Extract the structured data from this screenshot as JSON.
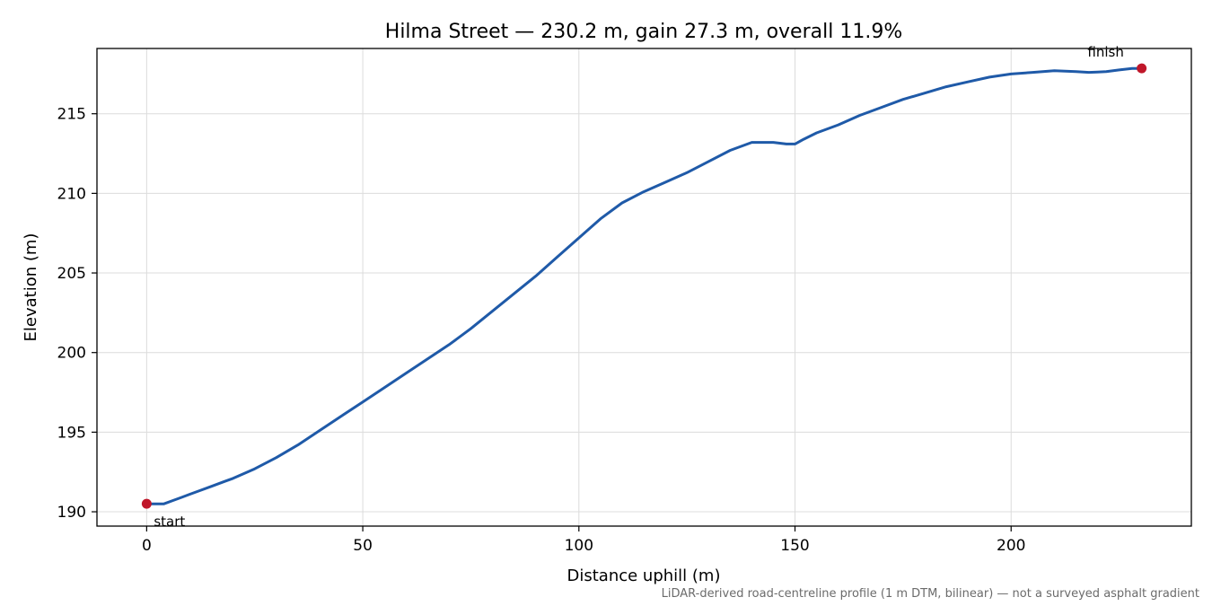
{
  "chart_data": {
    "type": "line",
    "title": "Hilma Street — 230.2 m, gain 27.3 m, overall 11.9%",
    "xlabel": "Distance uphill (m)",
    "ylabel": "Elevation (m)",
    "xlim": [
      -11.5,
      241.7
    ],
    "ylim": [
      189.1,
      219.1
    ],
    "xticks": [
      0,
      50,
      100,
      150,
      200
    ],
    "yticks": [
      190,
      195,
      200,
      205,
      210,
      215
    ],
    "grid": true,
    "series": [
      {
        "color": "#1f5aa8",
        "x": [
          0,
          2,
          4,
          6,
          8,
          10,
          12,
          15,
          18,
          20,
          25,
          30,
          35,
          40,
          45,
          50,
          55,
          60,
          65,
          70,
          75,
          80,
          85,
          90,
          95,
          100,
          105,
          110,
          115,
          120,
          125,
          130,
          135,
          140,
          145,
          148,
          150,
          152,
          155,
          160,
          165,
          170,
          175,
          180,
          185,
          190,
          195,
          200,
          205,
          210,
          215,
          218,
          220,
          222,
          225,
          228,
          230.2
        ],
        "y": [
          190.5,
          190.5,
          190.5,
          190.7,
          190.9,
          191.1,
          191.3,
          191.6,
          191.9,
          192.1,
          192.7,
          193.4,
          194.2,
          195.1,
          196.0,
          196.9,
          197.8,
          198.7,
          199.6,
          200.5,
          201.5,
          202.6,
          203.7,
          204.8,
          206.0,
          207.2,
          208.4,
          209.4,
          210.1,
          210.7,
          211.3,
          212.0,
          212.7,
          213.2,
          213.2,
          213.1,
          213.1,
          213.4,
          213.8,
          214.3,
          214.9,
          215.4,
          215.9,
          216.3,
          216.7,
          217.0,
          217.3,
          217.5,
          217.6,
          217.7,
          217.65,
          217.6,
          217.62,
          217.65,
          217.75,
          217.85,
          217.85
        ]
      }
    ],
    "annotations": {
      "start": {
        "label": "start",
        "x": 0,
        "y": 190.5,
        "color": "#c0172a"
      },
      "finish": {
        "label": "finish",
        "x": 230.2,
        "y": 217.85,
        "color": "#c0172a"
      }
    },
    "footnote": "LiDAR-derived road-centreline profile (1 m DTM, bilinear) — not a surveyed asphalt gradient"
  }
}
